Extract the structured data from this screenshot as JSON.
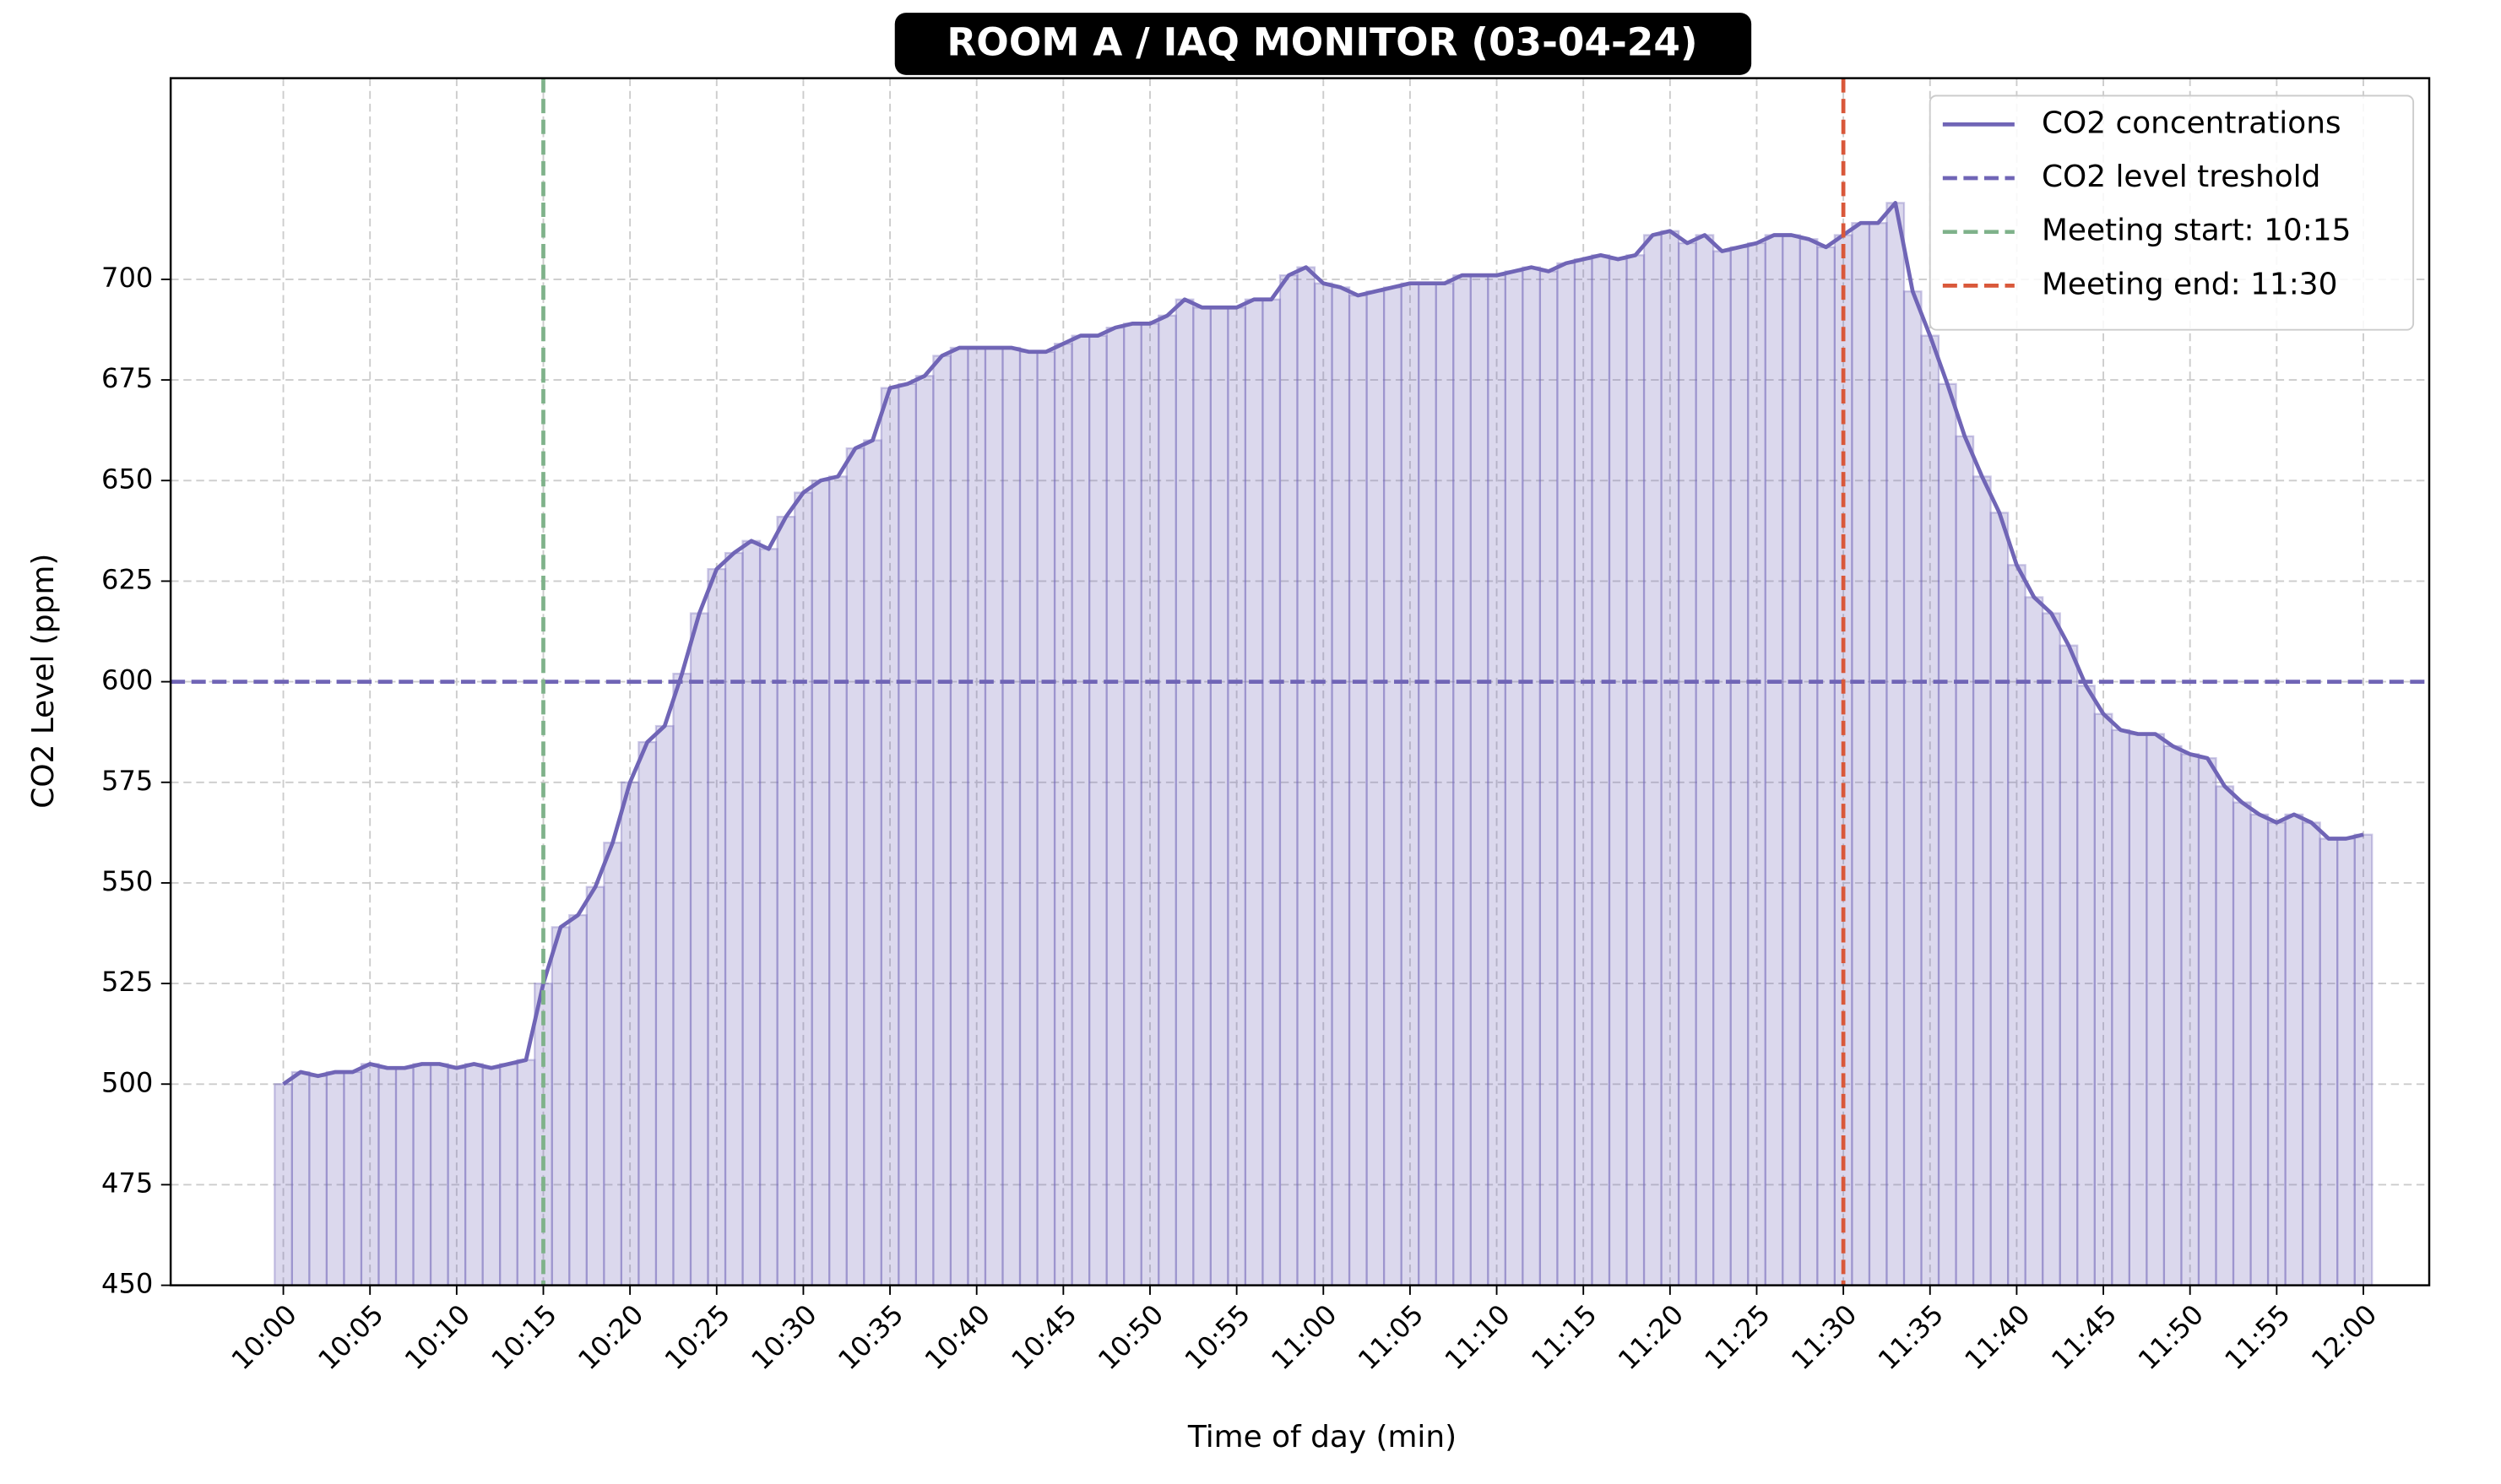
{
  "chart_data": {
    "type": "line",
    "bars": true,
    "title": "ROOM A / IAQ MONITOR (03-04-24)",
    "xlabel": "Time of day (min)",
    "ylabel": "CO2 Level (ppm)",
    "x": [
      0,
      1,
      2,
      3,
      4,
      5,
      6,
      7,
      8,
      9,
      10,
      11,
      12,
      13,
      14,
      15,
      16,
      17,
      18,
      19,
      20,
      21,
      22,
      23,
      24,
      25,
      26,
      27,
      28,
      29,
      30,
      31,
      32,
      33,
      34,
      35,
      36,
      37,
      38,
      39,
      40,
      41,
      42,
      43,
      44,
      45,
      46,
      47,
      48,
      49,
      50,
      51,
      52,
      53,
      54,
      55,
      56,
      57,
      58,
      59,
      60,
      61,
      62,
      63,
      64,
      65,
      66,
      67,
      68,
      69,
      70,
      71,
      72,
      73,
      74,
      75,
      76,
      77,
      78,
      79,
      80,
      81,
      82,
      83,
      84,
      85,
      86,
      87,
      88,
      89,
      90,
      91,
      92,
      93,
      94,
      95,
      96,
      97,
      98,
      99,
      100,
      101,
      102,
      103,
      104,
      105,
      106,
      107,
      108,
      109,
      110,
      111,
      112,
      113,
      114,
      115,
      116,
      117,
      118,
      119,
      120
    ],
    "series": [
      {
        "name": "CO2 concentrations",
        "color": "#7065b6",
        "values": [
          500,
          503,
          502,
          503,
          503,
          505,
          504,
          504,
          505,
          505,
          504,
          505,
          504,
          505,
          506,
          525,
          539,
          542,
          549,
          560,
          575,
          585,
          589,
          602,
          617,
          628,
          632,
          635,
          633,
          641,
          647,
          650,
          651,
          658,
          660,
          673,
          674,
          676,
          681,
          683,
          683,
          683,
          683,
          682,
          682,
          684,
          686,
          686,
          688,
          689,
          689,
          691,
          695,
          693,
          693,
          693,
          695,
          695,
          701,
          703,
          699,
          698,
          696,
          697,
          698,
          699,
          699,
          699,
          701,
          701,
          701,
          702,
          703,
          702,
          704,
          705,
          706,
          705,
          706,
          711,
          712,
          709,
          711,
          707,
          708,
          709,
          711,
          711,
          710,
          708,
          711,
          714,
          714,
          719,
          697,
          686,
          674,
          661,
          651,
          642,
          629,
          621,
          617,
          609,
          599,
          592,
          588,
          587,
          587,
          584,
          582,
          581,
          574,
          570,
          567,
          565,
          567,
          565,
          561,
          561,
          562
        ]
      }
    ],
    "hlines": [
      {
        "name": "CO2 level treshold",
        "value": 600,
        "color": "#7065b6"
      }
    ],
    "vlines": [
      {
        "name": "Meeting start: 10:15",
        "value": 15,
        "color": "#7fb28a"
      },
      {
        "name": "Meeting end: 11:30",
        "value": 90,
        "color": "#d9583a"
      }
    ],
    "xlim": [
      -6.5,
      123.8
    ],
    "ylim": [
      450,
      750
    ],
    "xticks": [
      {
        "value": 0,
        "label": "10:00"
      },
      {
        "value": 5,
        "label": "10:05"
      },
      {
        "value": 10,
        "label": "10:10"
      },
      {
        "value": 15,
        "label": "10:15"
      },
      {
        "value": 20,
        "label": "10:20"
      },
      {
        "value": 25,
        "label": "10:25"
      },
      {
        "value": 30,
        "label": "10:30"
      },
      {
        "value": 35,
        "label": "10:35"
      },
      {
        "value": 40,
        "label": "10:40"
      },
      {
        "value": 45,
        "label": "10:45"
      },
      {
        "value": 50,
        "label": "10:50"
      },
      {
        "value": 55,
        "label": "10:55"
      },
      {
        "value": 60,
        "label": "11:00"
      },
      {
        "value": 65,
        "label": "11:05"
      },
      {
        "value": 70,
        "label": "11:10"
      },
      {
        "value": 75,
        "label": "11:15"
      },
      {
        "value": 80,
        "label": "11:20"
      },
      {
        "value": 85,
        "label": "11:25"
      },
      {
        "value": 90,
        "label": "11:30"
      },
      {
        "value": 95,
        "label": "11:35"
      },
      {
        "value": 100,
        "label": "11:40"
      },
      {
        "value": 105,
        "label": "11:45"
      },
      {
        "value": 110,
        "label": "11:50"
      },
      {
        "value": 115,
        "label": "11:55"
      },
      {
        "value": 120,
        "label": "12:00"
      }
    ],
    "yticks": [
      450,
      475,
      500,
      525,
      550,
      575,
      600,
      625,
      650,
      675,
      700
    ],
    "grid": true,
    "legend": "upper right"
  }
}
